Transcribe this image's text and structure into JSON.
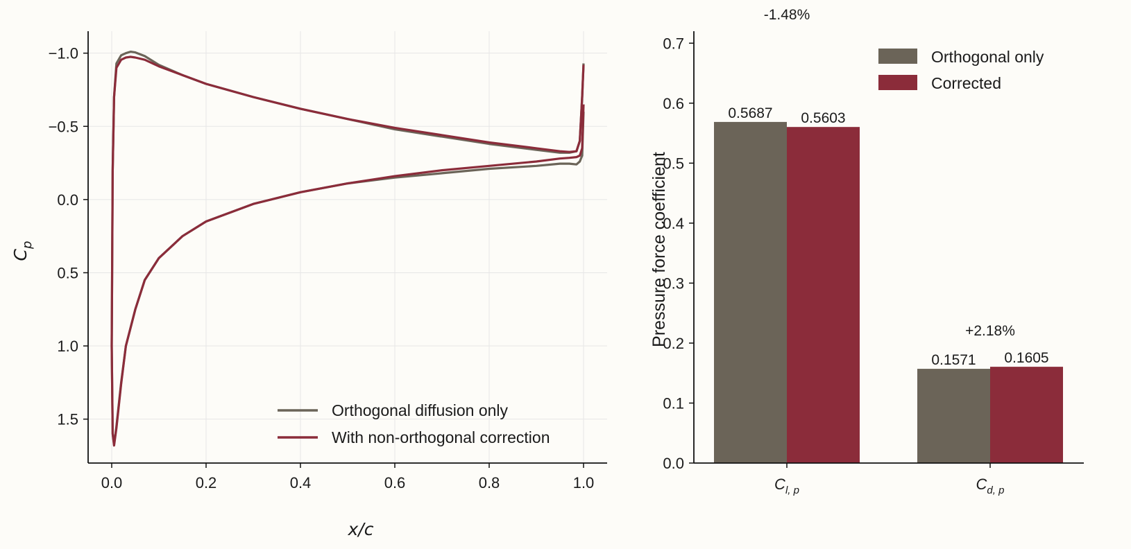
{
  "colors": {
    "orthogonal": "#6b6458",
    "corrected": "#8b2c3a",
    "background": "#fdfcf8"
  },
  "chart_data": [
    {
      "type": "line",
      "title": "",
      "xlabel": "x/c",
      "ylabel": "C_p",
      "xlim": [
        -0.05,
        1.05
      ],
      "ylim": [
        1.8,
        -1.15
      ],
      "y_inverted": true,
      "grid": true,
      "x_ticks": [
        "0.0",
        "0.2",
        "0.4",
        "0.6",
        "0.8",
        "1.0"
      ],
      "y_ticks": [
        "−1.0",
        "−0.5",
        "0.0",
        "0.5",
        "1.0",
        "1.5"
      ],
      "x_tick_values": [
        0,
        0.2,
        0.4,
        0.6,
        0.8,
        1.0
      ],
      "y_tick_values": [
        -1.0,
        -0.5,
        0.0,
        0.5,
        1.0,
        1.5
      ],
      "legend_position": "lower-right",
      "series": [
        {
          "name": "Orthogonal diffusion only",
          "color_key": "orthogonal",
          "upper_x": [
            0.0,
            0.002,
            0.005,
            0.01,
            0.02,
            0.03,
            0.04,
            0.05,
            0.07,
            0.1,
            0.15,
            0.2,
            0.3,
            0.4,
            0.5,
            0.6,
            0.7,
            0.8,
            0.9,
            0.95,
            0.97,
            0.985,
            0.992,
            0.997,
            1.0
          ],
          "upper_cp": [
            1.0,
            -0.2,
            -0.7,
            -0.93,
            -0.985,
            -1.0,
            -1.01,
            -1.005,
            -0.98,
            -0.92,
            -0.85,
            -0.79,
            -0.7,
            -0.62,
            -0.55,
            -0.48,
            -0.43,
            -0.38,
            -0.34,
            -0.32,
            -0.32,
            -0.33,
            -0.4,
            -0.7,
            -0.93
          ],
          "lower_x": [
            0.0,
            0.002,
            0.005,
            0.01,
            0.02,
            0.03,
            0.05,
            0.07,
            0.1,
            0.15,
            0.2,
            0.3,
            0.4,
            0.5,
            0.6,
            0.7,
            0.8,
            0.9,
            0.95,
            0.97,
            0.985,
            0.992,
            0.997,
            1.0
          ],
          "lower_cp": [
            1.0,
            1.6,
            1.67,
            1.55,
            1.25,
            1.0,
            0.75,
            0.55,
            0.4,
            0.25,
            0.15,
            0.03,
            -0.05,
            -0.11,
            -0.15,
            -0.18,
            -0.21,
            -0.23,
            -0.245,
            -0.245,
            -0.24,
            -0.26,
            -0.3,
            -0.6
          ]
        },
        {
          "name": "With non-orthogonal correction",
          "color_key": "corrected",
          "upper_x": [
            0.0,
            0.002,
            0.005,
            0.01,
            0.02,
            0.03,
            0.04,
            0.05,
            0.07,
            0.1,
            0.15,
            0.2,
            0.3,
            0.4,
            0.5,
            0.6,
            0.7,
            0.8,
            0.9,
            0.95,
            0.97,
            0.985,
            0.992,
            0.997,
            1.0
          ],
          "upper_cp": [
            1.0,
            -0.2,
            -0.7,
            -0.9,
            -0.955,
            -0.97,
            -0.975,
            -0.97,
            -0.955,
            -0.91,
            -0.85,
            -0.79,
            -0.7,
            -0.62,
            -0.55,
            -0.49,
            -0.44,
            -0.39,
            -0.35,
            -0.33,
            -0.325,
            -0.33,
            -0.4,
            -0.7,
            -0.92
          ],
          "lower_x": [
            0.0,
            0.002,
            0.005,
            0.01,
            0.02,
            0.03,
            0.05,
            0.07,
            0.1,
            0.15,
            0.2,
            0.3,
            0.4,
            0.5,
            0.6,
            0.7,
            0.8,
            0.9,
            0.95,
            0.97,
            0.985,
            0.992,
            0.997,
            1.0
          ],
          "lower_cp": [
            1.0,
            1.6,
            1.68,
            1.56,
            1.26,
            1.0,
            0.75,
            0.55,
            0.4,
            0.25,
            0.15,
            0.03,
            -0.05,
            -0.11,
            -0.16,
            -0.2,
            -0.23,
            -0.26,
            -0.28,
            -0.285,
            -0.29,
            -0.3,
            -0.35,
            -0.65
          ]
        }
      ]
    },
    {
      "type": "bar",
      "title": "",
      "xlabel": "",
      "ylabel": "Pressure force coefficient",
      "ylim": [
        0,
        0.72
      ],
      "y_ticks": [
        "0.0",
        "0.1",
        "0.2",
        "0.3",
        "0.4",
        "0.5",
        "0.6",
        "0.7"
      ],
      "y_tick_values": [
        0,
        0.1,
        0.2,
        0.3,
        0.4,
        0.5,
        0.6,
        0.7
      ],
      "categories": [
        {
          "base": "C",
          "sub": "l, p"
        },
        {
          "base": "C",
          "sub": "d, p"
        }
      ],
      "legend_position": "top-right",
      "series": [
        {
          "name": "Orthogonal only",
          "color_key": "orthogonal",
          "values": [
            0.5687,
            0.1571
          ],
          "labels": [
            "0.5687",
            "0.1571"
          ]
        },
        {
          "name": "Corrected",
          "color_key": "corrected",
          "values": [
            0.5603,
            0.1605
          ],
          "labels": [
            "0.5603",
            "0.1605"
          ]
        }
      ],
      "percent_changes": [
        "-1.48%",
        "+2.18%"
      ]
    }
  ]
}
